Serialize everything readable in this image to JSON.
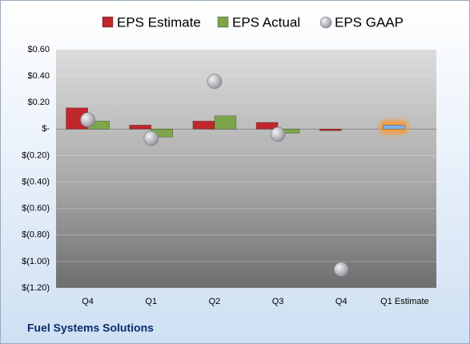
{
  "chart_data": {
    "type": "bar",
    "title": "Fuel Systems Solutions",
    "categories": [
      "Q4",
      "Q1",
      "Q2",
      "Q3",
      "Q4",
      "Q1 Estimate"
    ],
    "series": [
      {
        "name": "EPS Estimate",
        "type": "bar",
        "color": "#c0272d",
        "colors": [
          "#c0272d",
          "#c0272d",
          "#c0272d",
          "#c0272d",
          "#c0272d",
          "#7fb2e5"
        ],
        "values": [
          0.16,
          0.03,
          0.06,
          0.05,
          -0.01,
          0.03
        ]
      },
      {
        "name": "EPS Actual",
        "type": "bar",
        "color": "#7fa54a",
        "values": [
          0.06,
          -0.06,
          0.1,
          -0.03,
          null,
          null
        ]
      },
      {
        "name": "EPS GAAP",
        "type": "scatter",
        "color": "#b8bcc4",
        "values": [
          0.07,
          -0.07,
          0.36,
          -0.04,
          -1.06,
          null
        ]
      }
    ],
    "ylim": [
      -1.2,
      0.6
    ],
    "yticks": [
      {
        "value": 0.6,
        "label": "$0.60"
      },
      {
        "value": 0.4,
        "label": "$0.40"
      },
      {
        "value": 0.2,
        "label": "$0.20"
      },
      {
        "value": 0,
        "label": "$-"
      },
      {
        "value": -0.2,
        "label": "$(0.20)"
      },
      {
        "value": -0.4,
        "label": "$(0.40)"
      },
      {
        "value": -0.6,
        "label": "$(0.60)"
      },
      {
        "value": -0.8,
        "label": "$(0.80)"
      },
      {
        "value": -1.0,
        "label": "$(1.00)"
      },
      {
        "value": -1.2,
        "label": "$(1.20)"
      }
    ],
    "grid": true
  }
}
